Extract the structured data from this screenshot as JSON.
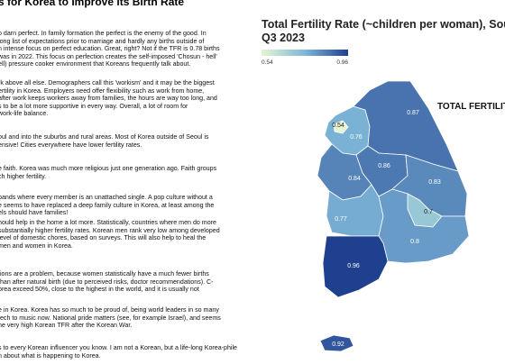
{
  "document": {
    "title": "s for Korea to Improve its Birth Rate",
    "paragraphs": [
      [
        "o darn perfect. In family formation the perfect is the enemy of the good. In",
        "long list of expectations prior to marriage and hardly any births outside of",
        "n intense focus on perfect education. Great, right? Not if the TFR is 0.78 births",
        "was in 2022. This focus on perfection creates the self-imposed 'Chosun - hell'",
        "ell) pressure cooker environment that Koreans frequently talk about."
      ],
      [
        "rk above all else. Demographers call this 'workism' and it may be the biggest",
        "ertility in Korea. Employers need offer flexibility such as work from home,",
        "after work keeps workers away from families, the hours are way too long, and",
        "s to be a lot more supportive in every way. Overall, a lot of room for",
        "work-life balance."
      ],
      [
        "oul and into the suburbs and rural areas. Most of Korea outside of Seoul is",
        "ensive! Cities everywhere have lower fertility rates."
      ],
      [
        "e faith. Korea was much more religious just one generation ago. Faith groups",
        "ch higher fertility."
      ],
      [
        "bands where every member is an unattached single. A pop culture without a",
        "e seems to have replaced a deep family culture in Korea, at least among the",
        "els should have families!"
      ],
      [
        "hould help in the home a lot more. Statistically, countries where men do more",
        "substantially higher fertility rates. Korean men rank very low among developed",
        "level of domestic chores, based on surveys. This will also help to heal the",
        "men and women in Korea."
      ],
      [
        "tions are a problem, because women statistically have a much fewer births",
        "than after natural birth (due to perceived risks, doctor recommendations). C-",
        "orea exceed 50%, close to the highest in the world, and it is usually not"
      ],
      [
        "e in Korea. Korea has so much to be proud of, being world leaders in so many",
        "tech to music now. National pride matters (see, for example Israel), and seems",
        "he very high Korean TFR after the Korean War."
      ],
      [
        "s to every Korean influencer you know. I am not a Korean, but a life-long Korea-phile",
        "n about what is happening to Korea."
      ]
    ]
  },
  "map": {
    "title": [
      "Total Fertility Rate (~children per woman), South",
      "Q3 2023"
    ],
    "colorbar": {
      "min": 0.54,
      "max": 0.96,
      "colors": [
        "#e6f5d0",
        "#7fb8d8",
        "#1f3f8f"
      ]
    },
    "legend_label": "TOTAL FERTILITY",
    "regions": [
      {
        "value": 0.76
      },
      {
        "value": 0.54
      },
      {
        "value": 0.87
      },
      {
        "value": 0.86
      },
      {
        "value": 0.84
      },
      {
        "value": 0.83
      },
      {
        "value": 0.77
      },
      {
        "value": 0.7
      },
      {
        "value": 0.8
      },
      {
        "value": 0.96
      },
      {
        "value": 0.92
      }
    ]
  }
}
